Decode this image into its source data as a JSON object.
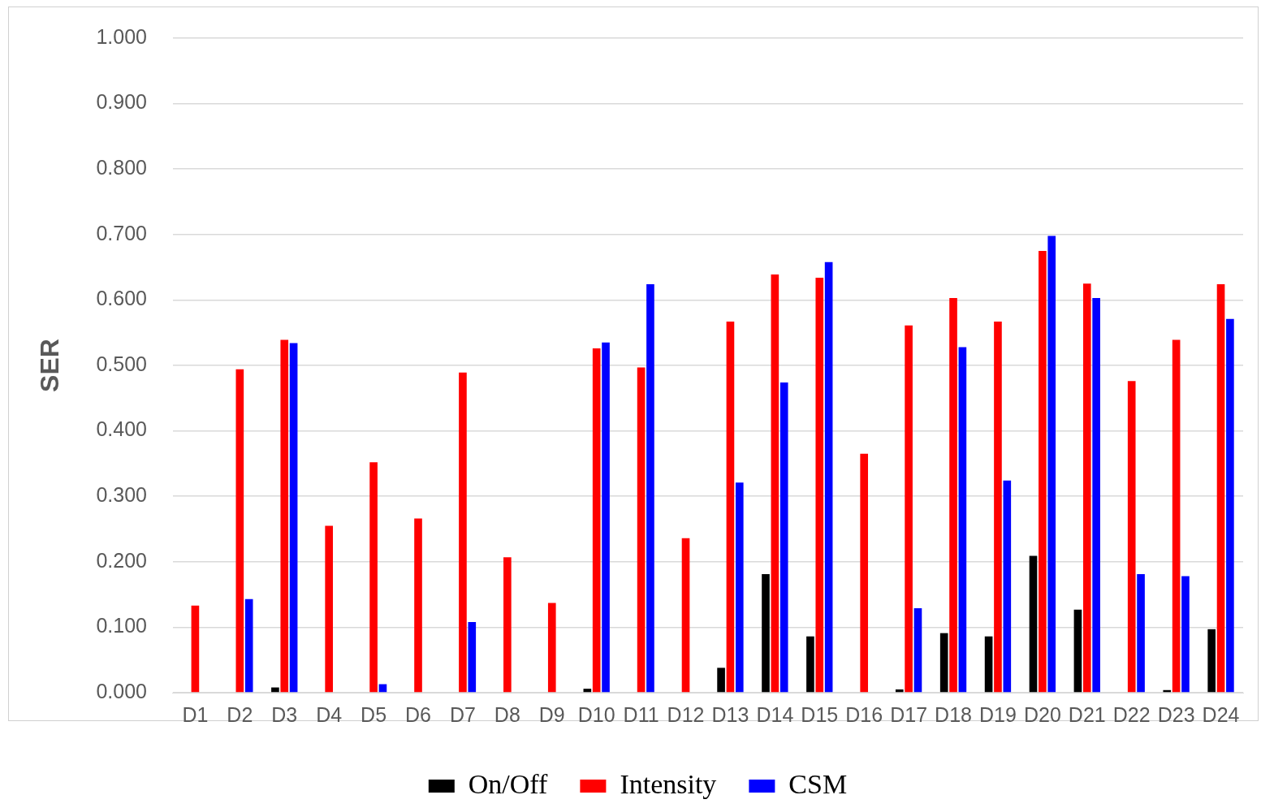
{
  "chart_data": {
    "type": "bar",
    "ylabel": "SER",
    "categories": [
      "D1",
      "D2",
      "D3",
      "D4",
      "D5",
      "D6",
      "D7",
      "D8",
      "D9",
      "D10",
      "D11",
      "D12",
      "D13",
      "D14",
      "D15",
      "D16",
      "D17",
      "D18",
      "D19",
      "D20",
      "D21",
      "D22",
      "D23",
      "D24"
    ],
    "series": [
      {
        "name": "On/Off",
        "color": "#000000",
        "values": [
          0,
          0,
          0.008,
          0,
          0,
          0,
          0,
          0,
          0,
          0.006,
          0,
          0,
          0.038,
          0.181,
          0.086,
          0,
          0.005,
          0.091,
          0.086,
          0.209,
          0.127,
          0,
          0.004,
          0.097
        ]
      },
      {
        "name": "Intensity",
        "color": "#ff0000",
        "values": [
          0.133,
          0.494,
          0.539,
          0.255,
          0.352,
          0.266,
          0.489,
          0.207,
          0.137,
          0.526,
          0.497,
          0.236,
          0.567,
          0.639,
          0.634,
          0.365,
          0.561,
          0.603,
          0.567,
          0.675,
          0.625,
          0.476,
          0.539,
          0.624
        ]
      },
      {
        "name": "CSM",
        "color": "#0000ff",
        "values": [
          0,
          0.143,
          0.534,
          0,
          0.013,
          0,
          0.108,
          0,
          0,
          0.535,
          0.624,
          0,
          0.321,
          0.474,
          0.658,
          null,
          0.129,
          0.528,
          0.324,
          0.698,
          0.603,
          0.181,
          0.178,
          0.571
        ]
      }
    ],
    "ylim": [
      0,
      1
    ],
    "yticks": [
      {
        "value": 0,
        "label": "0.000"
      },
      {
        "value": 0.1,
        "label": "0.100"
      },
      {
        "value": 0.2,
        "label": "0.200"
      },
      {
        "value": 0.3,
        "label": "0.300"
      },
      {
        "value": 0.4,
        "label": "0.400"
      },
      {
        "value": 0.5,
        "label": "0.500"
      },
      {
        "value": 0.6,
        "label": "0.600"
      },
      {
        "value": 0.7,
        "label": "0.700"
      },
      {
        "value": 0.8,
        "label": "0.800"
      },
      {
        "value": 0.9,
        "label": "0.900"
      },
      {
        "value": 1,
        "label": "1.000"
      }
    ],
    "grid": "y",
    "legend": "bottom"
  }
}
